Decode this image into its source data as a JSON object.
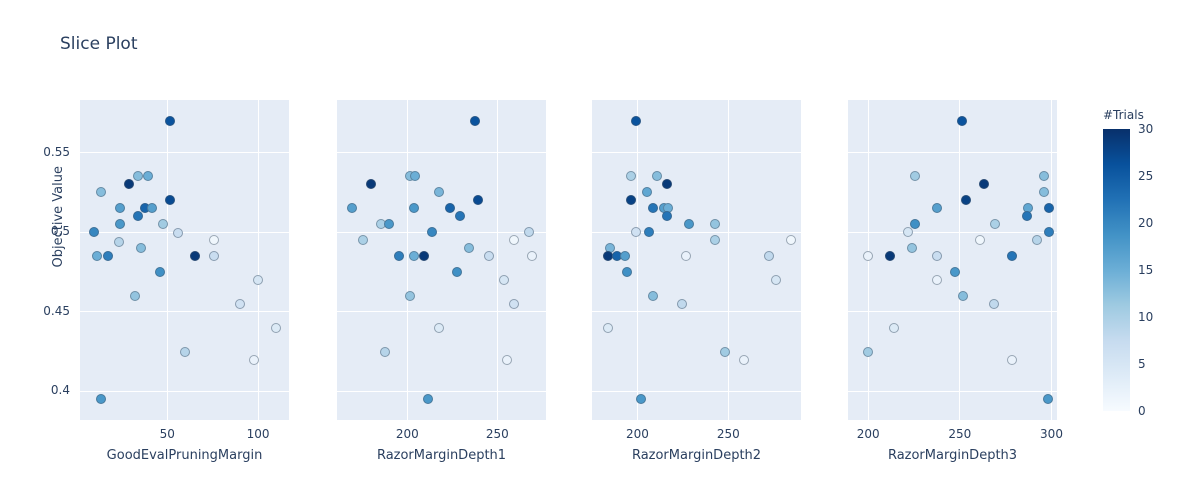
{
  "title": "Slice Plot",
  "y_axis": {
    "title": "Objective Value",
    "range": [
      0.382,
      0.583
    ],
    "ticks": [
      0.55,
      0.5,
      0.45,
      0.4
    ],
    "tick_labels": [
      "0.55",
      "0.5",
      "0.45",
      "0.4"
    ]
  },
  "colorbar": {
    "title": "#Trials",
    "min": 0,
    "max": 30,
    "ticks": [
      30,
      25,
      20,
      15,
      10,
      5,
      0
    ],
    "colorscale": [
      "#f7fbff",
      "#deebf7",
      "#c6dbef",
      "#9ecae1",
      "#6baed6",
      "#4292c6",
      "#2171b5",
      "#08519c",
      "#08306b"
    ]
  },
  "colors": {
    "font": "#2a3f5f",
    "plot_bg": "#e5ecf6",
    "grid": "#ffffff",
    "marker_line": "rgba(70,90,110,0.5)",
    "paper": "#ffffff"
  },
  "chart_data": [
    {
      "type": "scatter",
      "xlabel": "GoodEvalPruningMargin",
      "ylabel": "Objective Value",
      "xlim": [
        2,
        117
      ],
      "ylim": [
        0.382,
        0.583
      ],
      "xticks": [
        50,
        100
      ],
      "yticks": [
        0.4,
        0.45,
        0.5,
        0.55
      ],
      "color_dimension": "#Trials",
      "points_xyc": [
        [
          51.5,
          0.57,
          26
        ],
        [
          34,
          0.535,
          13
        ],
        [
          39.5,
          0.535,
          15
        ],
        [
          29,
          0.53,
          29
        ],
        [
          13.5,
          0.525,
          13
        ],
        [
          51.5,
          0.52,
          27
        ],
        [
          24,
          0.515,
          17
        ],
        [
          37.5,
          0.515,
          24
        ],
        [
          41.5,
          0.515,
          17
        ],
        [
          34,
          0.51,
          22
        ],
        [
          24,
          0.505,
          18
        ],
        [
          47.5,
          0.505,
          11
        ],
        [
          9.5,
          0.5,
          20
        ],
        [
          56,
          0.4995,
          7
        ],
        [
          23.5,
          0.494,
          9
        ],
        [
          76,
          0.495,
          1
        ],
        [
          35.5,
          0.49,
          13
        ],
        [
          11.5,
          0.485,
          15
        ],
        [
          17.5,
          0.485,
          21
        ],
        [
          65.5,
          0.485,
          29
        ],
        [
          75.5,
          0.485,
          7
        ],
        [
          46,
          0.475,
          19
        ],
        [
          100,
          0.47,
          5
        ],
        [
          32,
          0.46,
          12
        ],
        [
          90,
          0.455,
          6
        ],
        [
          110,
          0.44,
          4
        ],
        [
          60,
          0.425,
          9
        ],
        [
          98,
          0.42,
          2
        ],
        [
          13.5,
          0.395,
          18
        ]
      ]
    },
    {
      "type": "scatter",
      "xlabel": "RazorMarginDepth1",
      "ylabel": "Objective Value",
      "xlim": [
        161,
        277
      ],
      "ylim": [
        0.382,
        0.583
      ],
      "xticks": [
        200,
        250
      ],
      "yticks": [
        0.4,
        0.45,
        0.5,
        0.55
      ],
      "color_dimension": "#Trials",
      "points_xyc": [
        [
          237.5,
          0.57,
          26
        ],
        [
          201.5,
          0.535,
          13
        ],
        [
          204.5,
          0.535,
          15
        ],
        [
          180,
          0.53,
          29
        ],
        [
          217.5,
          0.525,
          14
        ],
        [
          239.5,
          0.52,
          27
        ],
        [
          169.5,
          0.515,
          17
        ],
        [
          204,
          0.515,
          18
        ],
        [
          223.5,
          0.515,
          24
        ],
        [
          229.5,
          0.51,
          22
        ],
        [
          185.5,
          0.505,
          10
        ],
        [
          190,
          0.505,
          18
        ],
        [
          213.5,
          0.5,
          20
        ],
        [
          267.5,
          0.5,
          8
        ],
        [
          175.5,
          0.495,
          10
        ],
        [
          259.5,
          0.495,
          1
        ],
        [
          234,
          0.49,
          13
        ],
        [
          195.5,
          0.485,
          21
        ],
        [
          203.5,
          0.485,
          15
        ],
        [
          209.5,
          0.485,
          29
        ],
        [
          245.5,
          0.485,
          7
        ],
        [
          269.5,
          0.485,
          2
        ],
        [
          227.5,
          0.475,
          19
        ],
        [
          253.5,
          0.47,
          5
        ],
        [
          201.5,
          0.46,
          12
        ],
        [
          259.5,
          0.455,
          6
        ],
        [
          217.5,
          0.44,
          4
        ],
        [
          187.5,
          0.425,
          9
        ],
        [
          255.5,
          0.42,
          2
        ],
        [
          211.5,
          0.395,
          18
        ]
      ]
    },
    {
      "type": "scatter",
      "xlabel": "RazorMarginDepth2",
      "ylabel": "Objective Value",
      "xlim": [
        175,
        290
      ],
      "ylim": [
        0.382,
        0.583
      ],
      "xticks": [
        200,
        250
      ],
      "yticks": [
        0.4,
        0.45,
        0.5,
        0.55
      ],
      "color_dimension": "#Trials",
      "points_xyc": [
        [
          199,
          0.57,
          26
        ],
        [
          196.5,
          0.535,
          10
        ],
        [
          211,
          0.535,
          13
        ],
        [
          216.5,
          0.53,
          29
        ],
        [
          205,
          0.525,
          16
        ],
        [
          196.5,
          0.52,
          28
        ],
        [
          208.5,
          0.515,
          22
        ],
        [
          214.5,
          0.515,
          17
        ],
        [
          217,
          0.515,
          15
        ],
        [
          216.5,
          0.51,
          22
        ],
        [
          228.5,
          0.505,
          18
        ],
        [
          242.5,
          0.505,
          12
        ],
        [
          199,
          0.5,
          6
        ],
        [
          206.5,
          0.5,
          21
        ],
        [
          242.5,
          0.495,
          10
        ],
        [
          284.5,
          0.495,
          1
        ],
        [
          185,
          0.49,
          14
        ],
        [
          184,
          0.485,
          29
        ],
        [
          188.5,
          0.485,
          24
        ],
        [
          193,
          0.485,
          17
        ],
        [
          226.5,
          0.485,
          2
        ],
        [
          272.5,
          0.485,
          8
        ],
        [
          194.5,
          0.475,
          19
        ],
        [
          276.5,
          0.47,
          5
        ],
        [
          208.5,
          0.46,
          13
        ],
        [
          224.5,
          0.455,
          8
        ],
        [
          184,
          0.44,
          4
        ],
        [
          248,
          0.425,
          11
        ],
        [
          258.5,
          0.42,
          2
        ],
        [
          202,
          0.395,
          18
        ]
      ]
    },
    {
      "type": "scatter",
      "xlabel": "RazorMarginDepth3",
      "ylabel": "Objective Value",
      "xlim": [
        189,
        303
      ],
      "ylim": [
        0.382,
        0.583
      ],
      "xticks": [
        200,
        250,
        300
      ],
      "yticks": [
        0.4,
        0.45,
        0.5,
        0.55
      ],
      "color_dimension": "#Trials",
      "points_xyc": [
        [
          251,
          0.57,
          26
        ],
        [
          225.5,
          0.535,
          11
        ],
        [
          296,
          0.535,
          13
        ],
        [
          263,
          0.53,
          29
        ],
        [
          296,
          0.525,
          13
        ],
        [
          253.5,
          0.52,
          28
        ],
        [
          237.5,
          0.515,
          17
        ],
        [
          287,
          0.515,
          16
        ],
        [
          298.5,
          0.515,
          24
        ],
        [
          286.5,
          0.51,
          22
        ],
        [
          225.5,
          0.505,
          19
        ],
        [
          269,
          0.505,
          10
        ],
        [
          221.5,
          0.5,
          5
        ],
        [
          298.5,
          0.5,
          21
        ],
        [
          261,
          0.495,
          1
        ],
        [
          292,
          0.495,
          9
        ],
        [
          224,
          0.49,
          12
        ],
        [
          200,
          0.485,
          2
        ],
        [
          212,
          0.485,
          29
        ],
        [
          237.5,
          0.485,
          7
        ],
        [
          278.5,
          0.485,
          22
        ],
        [
          247.5,
          0.475,
          18
        ],
        [
          237.5,
          0.47,
          2
        ],
        [
          251.5,
          0.46,
          13
        ],
        [
          268.5,
          0.455,
          8
        ],
        [
          214,
          0.44,
          4
        ],
        [
          200,
          0.425,
          11
        ],
        [
          278.5,
          0.42,
          2
        ],
        [
          298,
          0.395,
          18
        ]
      ]
    }
  ]
}
